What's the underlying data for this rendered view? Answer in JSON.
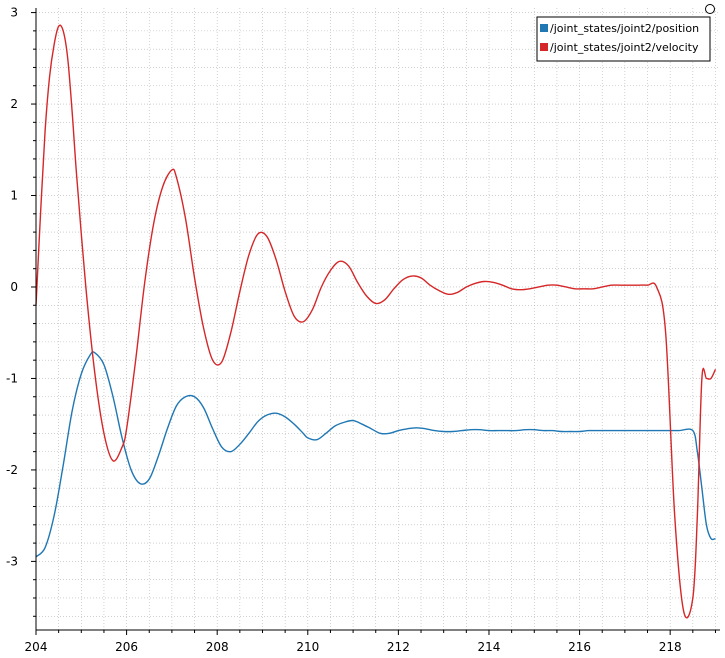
{
  "chart_data": {
    "type": "line",
    "title": "",
    "xlabel": "",
    "ylabel": "",
    "xlim": [
      204,
      219.1
    ],
    "ylim": [
      -3.75,
      3.05
    ],
    "x_ticks": [
      "204",
      "206",
      "208",
      "210",
      "212",
      "214",
      "216",
      "218"
    ],
    "y_ticks": [
      "3",
      "2",
      "1",
      "0",
      "-1",
      "-2",
      "-3"
    ],
    "grid": true,
    "legend_position": "top-right",
    "series": [
      {
        "name": "/joint_states/joint2/position",
        "color": "#1f77b4",
        "x": [
          204.0,
          204.2,
          204.4,
          204.6,
          204.8,
          205.0,
          205.2,
          205.3,
          205.5,
          205.7,
          205.9,
          206.1,
          206.3,
          206.5,
          206.7,
          206.9,
          207.1,
          207.3,
          207.5,
          207.7,
          207.9,
          208.1,
          208.3,
          208.5,
          208.7,
          208.9,
          209.1,
          209.3,
          209.5,
          209.7,
          209.9,
          210.0,
          210.2,
          210.4,
          210.6,
          210.8,
          211.0,
          211.2,
          211.4,
          211.6,
          211.8,
          212.0,
          212.2,
          212.4,
          212.6,
          212.8,
          213.0,
          213.2,
          213.4,
          213.6,
          213.8,
          214.0,
          214.2,
          214.4,
          214.6,
          214.8,
          215.0,
          215.2,
          215.4,
          215.6,
          215.8,
          216.0,
          216.2,
          216.4,
          216.6,
          216.8,
          217.0,
          217.2,
          217.4,
          217.6,
          217.8,
          218.0,
          218.2,
          218.5,
          218.6,
          218.7,
          218.8,
          218.9,
          219.0
        ],
        "y": [
          -2.95,
          -2.85,
          -2.5,
          -1.95,
          -1.35,
          -0.95,
          -0.74,
          -0.72,
          -0.85,
          -1.2,
          -1.65,
          -2.0,
          -2.15,
          -2.1,
          -1.85,
          -1.55,
          -1.3,
          -1.2,
          -1.2,
          -1.32,
          -1.55,
          -1.75,
          -1.8,
          -1.72,
          -1.6,
          -1.47,
          -1.4,
          -1.38,
          -1.42,
          -1.5,
          -1.6,
          -1.65,
          -1.67,
          -1.6,
          -1.52,
          -1.48,
          -1.46,
          -1.5,
          -1.55,
          -1.6,
          -1.6,
          -1.57,
          -1.55,
          -1.54,
          -1.55,
          -1.57,
          -1.58,
          -1.58,
          -1.57,
          -1.56,
          -1.56,
          -1.57,
          -1.57,
          -1.57,
          -1.57,
          -1.56,
          -1.56,
          -1.57,
          -1.57,
          -1.58,
          -1.58,
          -1.58,
          -1.57,
          -1.57,
          -1.57,
          -1.57,
          -1.57,
          -1.57,
          -1.57,
          -1.57,
          -1.57,
          -1.57,
          -1.57,
          -1.57,
          -1.8,
          -2.2,
          -2.6,
          -2.75,
          -2.75
        ]
      },
      {
        "name": "/joint_states/joint2/velocity",
        "color": "#d62728",
        "x": [
          204.0,
          204.1,
          204.2,
          204.3,
          204.4,
          204.5,
          204.6,
          204.7,
          204.8,
          204.9,
          205.1,
          205.3,
          205.5,
          205.7,
          205.9,
          206.0,
          206.2,
          206.4,
          206.6,
          206.8,
          207.0,
          207.1,
          207.3,
          207.5,
          207.7,
          207.9,
          208.1,
          208.3,
          208.5,
          208.7,
          208.9,
          209.1,
          209.3,
          209.5,
          209.7,
          209.9,
          210.1,
          210.3,
          210.5,
          210.7,
          210.9,
          211.1,
          211.3,
          211.5,
          211.7,
          211.9,
          212.1,
          212.3,
          212.5,
          212.7,
          212.9,
          213.1,
          213.3,
          213.5,
          213.7,
          213.9,
          214.1,
          214.3,
          214.5,
          214.7,
          214.9,
          215.1,
          215.3,
          215.5,
          215.7,
          215.9,
          216.1,
          216.3,
          216.5,
          216.7,
          216.9,
          217.1,
          217.3,
          217.5,
          217.7,
          217.9,
          218.1,
          218.3,
          218.5,
          218.6,
          218.7,
          218.8,
          218.9,
          219.0
        ],
        "y": [
          -0.2,
          0.8,
          1.7,
          2.3,
          2.65,
          2.85,
          2.8,
          2.5,
          1.9,
          1.2,
          0.0,
          -0.95,
          -1.6,
          -1.9,
          -1.75,
          -1.55,
          -0.8,
          0.05,
          0.7,
          1.1,
          1.28,
          1.2,
          0.75,
          0.1,
          -0.45,
          -0.8,
          -0.82,
          -0.5,
          -0.05,
          0.35,
          0.58,
          0.55,
          0.3,
          -0.05,
          -0.32,
          -0.38,
          -0.25,
          0.0,
          0.18,
          0.28,
          0.23,
          0.05,
          -0.1,
          -0.18,
          -0.14,
          -0.02,
          0.08,
          0.12,
          0.1,
          0.02,
          -0.04,
          -0.08,
          -0.06,
          0.0,
          0.04,
          0.06,
          0.05,
          0.02,
          -0.02,
          -0.03,
          -0.02,
          0.0,
          0.02,
          0.02,
          0.0,
          -0.02,
          -0.02,
          -0.02,
          0.0,
          0.02,
          0.02,
          0.02,
          0.02,
          0.02,
          0.0,
          -0.5,
          -2.5,
          -3.55,
          -3.4,
          -2.5,
          -1.0,
          -1.0,
          -1.0,
          -0.9
        ]
      }
    ]
  }
}
